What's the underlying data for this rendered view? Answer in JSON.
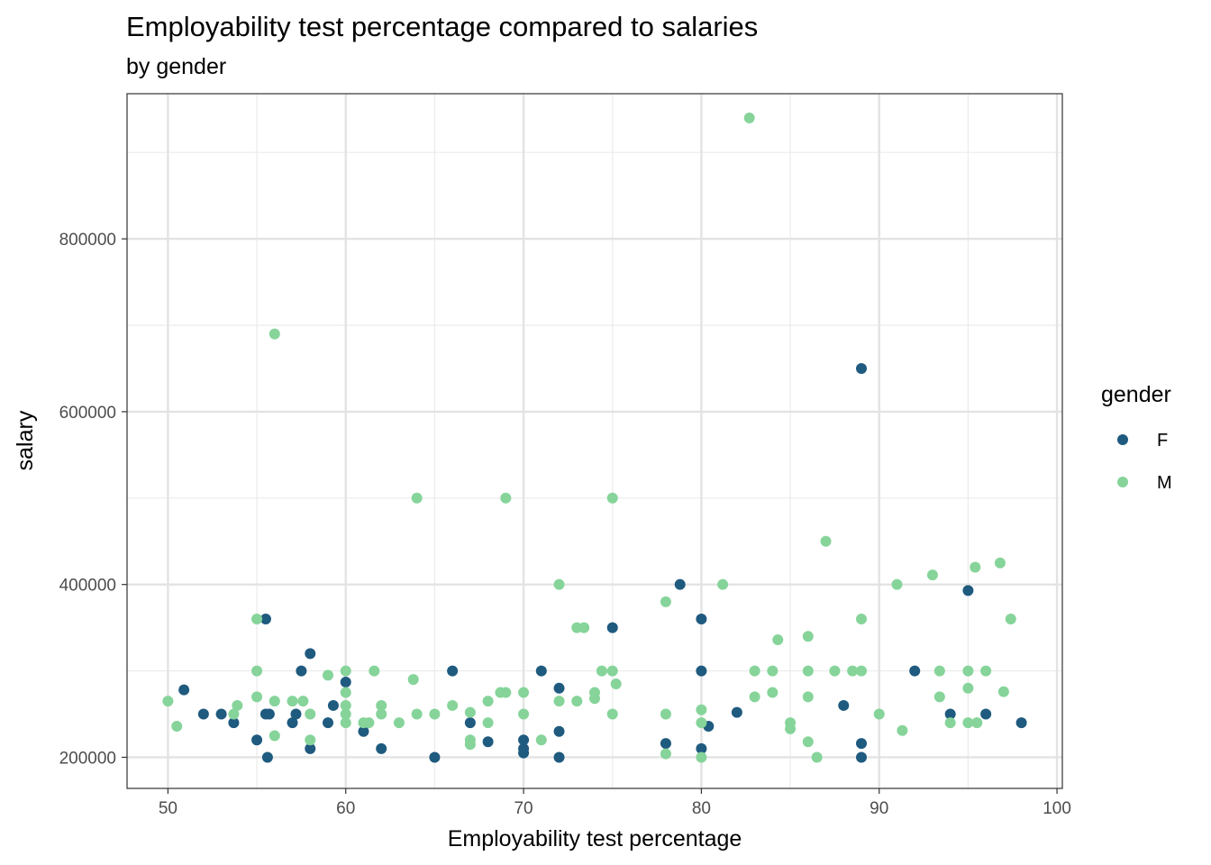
{
  "chart_data": {
    "type": "scatter",
    "title": "Employability test percentage compared to salaries",
    "subtitle": "by gender",
    "xlabel": "Employability test percentage",
    "ylabel": "salary",
    "xlim": [
      47.7,
      100.3
    ],
    "ylim": [
      164000,
      968000
    ],
    "x_ticks": [
      50,
      60,
      70,
      80,
      90,
      100
    ],
    "x_tick_labels": [
      "50",
      "60",
      "70",
      "80",
      "90",
      "100"
    ],
    "y_ticks": [
      200000,
      400000,
      600000,
      800000
    ],
    "y_tick_labels": [
      "200000",
      "400000",
      "600000",
      "800000"
    ],
    "grid": true,
    "legend": {
      "title": "gender",
      "placement": "right",
      "entries": [
        {
          "label": "F",
          "color": "#1f5a7f"
        },
        {
          "label": "M",
          "color": "#86d49a"
        }
      ]
    },
    "series": [
      {
        "name": "F",
        "color": "#1f5a7f",
        "points": [
          [
            50.9,
            278000
          ],
          [
            52,
            250000
          ],
          [
            53,
            250000
          ],
          [
            53.7,
            240000
          ],
          [
            55,
            220000
          ],
          [
            55.5,
            250000
          ],
          [
            55.5,
            360000
          ],
          [
            55.6,
            200000
          ],
          [
            55.7,
            250000
          ],
          [
            57,
            240000
          ],
          [
            57.2,
            250000
          ],
          [
            57.5,
            300000
          ],
          [
            58,
            320000
          ],
          [
            58,
            210000
          ],
          [
            59,
            240000
          ],
          [
            59.3,
            260000
          ],
          [
            60,
            287000
          ],
          [
            61,
            230000
          ],
          [
            62,
            210000
          ],
          [
            65,
            200000
          ],
          [
            66,
            300000
          ],
          [
            67,
            240000
          ],
          [
            68,
            218000
          ],
          [
            70,
            220000
          ],
          [
            70,
            210000
          ],
          [
            70,
            205000
          ],
          [
            71,
            300000
          ],
          [
            72,
            280000
          ],
          [
            72,
            230000
          ],
          [
            72,
            200000
          ],
          [
            75,
            350000
          ],
          [
            78,
            216000
          ],
          [
            78.8,
            400000
          ],
          [
            80,
            360000
          ],
          [
            80,
            300000
          ],
          [
            80,
            210000
          ],
          [
            80.4,
            236000
          ],
          [
            82,
            252000
          ],
          [
            88,
            260000
          ],
          [
            89,
            650000
          ],
          [
            89,
            216000
          ],
          [
            89,
            200000
          ],
          [
            92,
            300000
          ],
          [
            94,
            250000
          ],
          [
            95,
            393000
          ],
          [
            96,
            250000
          ],
          [
            98,
            240000
          ]
        ]
      },
      {
        "name": "M",
        "color": "#86d49a",
        "points": [
          [
            50,
            265000
          ],
          [
            50.5,
            236000
          ],
          [
            53.7,
            250000
          ],
          [
            53.9,
            260000
          ],
          [
            55,
            360000
          ],
          [
            55,
            300000
          ],
          [
            55,
            270000
          ],
          [
            56,
            690000
          ],
          [
            56,
            265000
          ],
          [
            56,
            225000
          ],
          [
            57,
            265000
          ],
          [
            57.6,
            265000
          ],
          [
            58,
            250000
          ],
          [
            58,
            220000
          ],
          [
            59,
            295000
          ],
          [
            60,
            300000
          ],
          [
            60,
            275000
          ],
          [
            60,
            260000
          ],
          [
            60,
            250000
          ],
          [
            60,
            240000
          ],
          [
            61,
            240000
          ],
          [
            61.3,
            240000
          ],
          [
            61.6,
            300000
          ],
          [
            62,
            260000
          ],
          [
            62,
            250000
          ],
          [
            63,
            240000
          ],
          [
            63.8,
            290000
          ],
          [
            64,
            500000
          ],
          [
            64,
            250000
          ],
          [
            65,
            250000
          ],
          [
            66,
            260000
          ],
          [
            67,
            252000
          ],
          [
            67,
            220000
          ],
          [
            67,
            215000
          ],
          [
            68,
            265000
          ],
          [
            68,
            240000
          ],
          [
            68.7,
            275000
          ],
          [
            69,
            500000
          ],
          [
            69,
            275000
          ],
          [
            70,
            275000
          ],
          [
            70,
            250000
          ],
          [
            71,
            220000
          ],
          [
            72,
            400000
          ],
          [
            72,
            265000
          ],
          [
            73,
            350000
          ],
          [
            73,
            265000
          ],
          [
            73.4,
            350000
          ],
          [
            74,
            275000
          ],
          [
            74,
            268000
          ],
          [
            74.4,
            300000
          ],
          [
            75,
            500000
          ],
          [
            75,
            300000
          ],
          [
            75,
            250000
          ],
          [
            75.2,
            285000
          ],
          [
            78,
            380000
          ],
          [
            78,
            250000
          ],
          [
            78,
            204000
          ],
          [
            80,
            255000
          ],
          [
            80,
            240000
          ],
          [
            80,
            200000
          ],
          [
            81.2,
            400000
          ],
          [
            82.7,
            940000
          ],
          [
            83,
            300000
          ],
          [
            83,
            270000
          ],
          [
            84,
            300000
          ],
          [
            84,
            275000
          ],
          [
            84.3,
            336000
          ],
          [
            85,
            240000
          ],
          [
            85,
            233000
          ],
          [
            86,
            340000
          ],
          [
            86,
            300000
          ],
          [
            86,
            270000
          ],
          [
            86,
            218000
          ],
          [
            86.5,
            200000
          ],
          [
            87,
            450000
          ],
          [
            87.5,
            300000
          ],
          [
            88.5,
            300000
          ],
          [
            89,
            360000
          ],
          [
            89,
            300000
          ],
          [
            90,
            250000
          ],
          [
            91,
            400000
          ],
          [
            91.3,
            231000
          ],
          [
            93,
            411000
          ],
          [
            93.4,
            300000
          ],
          [
            93.4,
            270000
          ],
          [
            94,
            240000
          ],
          [
            95,
            300000
          ],
          [
            95,
            280000
          ],
          [
            95,
            240000
          ],
          [
            95.4,
            420000
          ],
          [
            95.5,
            240000
          ],
          [
            96,
            300000
          ],
          [
            96.8,
            425000
          ],
          [
            97,
            276000
          ],
          [
            97.4,
            360000
          ]
        ]
      }
    ]
  }
}
